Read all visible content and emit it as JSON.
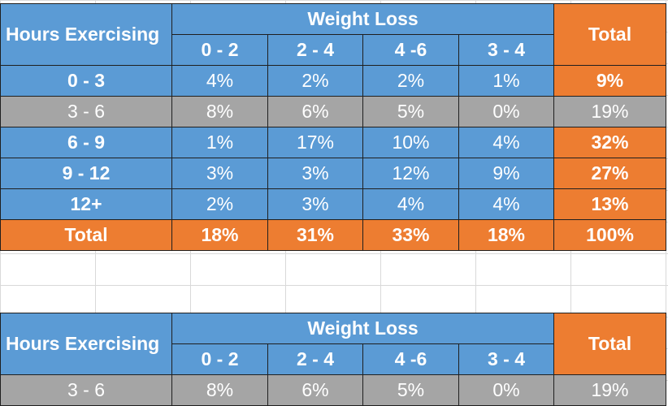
{
  "tables": [
    {
      "hours_header": "Hours Exercising",
      "weight_loss_header": "Weight Loss",
      "total_header": "Total",
      "columns": [
        "0 - 2",
        "2 - 4",
        "4 -6",
        "3 - 4"
      ],
      "rows": [
        {
          "label": "0 - 3",
          "values": [
            "4%",
            "2%",
            "2%",
            "1%"
          ],
          "total": "9%"
        },
        {
          "label": "3 - 6",
          "values": [
            "8%",
            "6%",
            "5%",
            "0%"
          ],
          "total": "19%"
        },
        {
          "label": "6 - 9",
          "values": [
            "1%",
            "17%",
            "10%",
            "4%"
          ],
          "total": "32%"
        },
        {
          "label": "9 - 12",
          "values": [
            "3%",
            "3%",
            "12%",
            "9%"
          ],
          "total": "27%"
        },
        {
          "label": "12+",
          "values": [
            "2%",
            "3%",
            "4%",
            "4%"
          ],
          "total": "13%"
        }
      ],
      "totals_row": {
        "label": "Total",
        "values": [
          "18%",
          "31%",
          "33%",
          "18%"
        ],
        "total": "100%"
      }
    },
    {
      "hours_header": "Hours Exercising",
      "weight_loss_header": "Weight Loss",
      "total_header": "Total",
      "columns": [
        "0 - 2",
        "2 - 4",
        "4 -6",
        "3 - 4"
      ],
      "rows": [
        {
          "label": "3 - 6",
          "values": [
            "8%",
            "6%",
            "5%",
            "0%"
          ],
          "total": "19%"
        }
      ]
    }
  ],
  "colors": {
    "header_blue": "#5b9bd5",
    "row_gray": "#a5a5a5",
    "total_orange": "#ed7d31",
    "text": "#ffffff",
    "grid": "#d9d9d9"
  }
}
